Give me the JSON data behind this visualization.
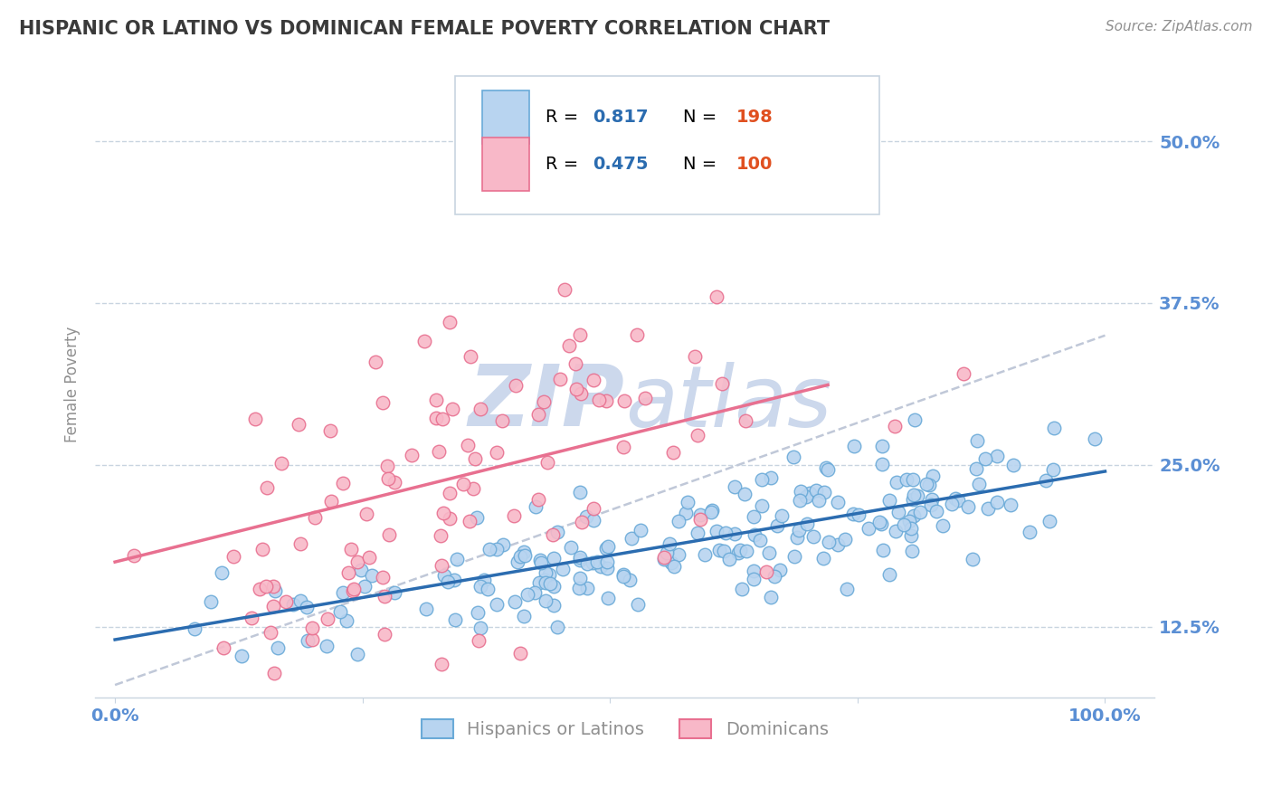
{
  "title": "HISPANIC OR LATINO VS DOMINICAN FEMALE POVERTY CORRELATION CHART",
  "source": "Source: ZipAtlas.com",
  "ylabel": "Female Poverty",
  "legend_labels": [
    "Hispanics or Latinos",
    "Dominicans"
  ],
  "r_blue": 0.817,
  "n_blue": 198,
  "r_pink": 0.475,
  "n_pink": 100,
  "blue_scatter_color": "#b8d4f0",
  "blue_edge_color": "#6aaad8",
  "pink_scatter_color": "#f8b8c8",
  "pink_edge_color": "#e87090",
  "blue_line_color": "#2b6cb0",
  "pink_line_color": "#e87090",
  "gray_dash_color": "#c0c8d8",
  "title_color": "#3a3a3a",
  "stat_color": "#2b6cb0",
  "n_color": "#e05020",
  "axis_tick_color": "#5b8fd4",
  "ylabel_color": "#909090",
  "source_color": "#909090",
  "watermark_color": "#ccd8ec",
  "grid_color": "#c8d4e0",
  "legend_border_color": "#c8d4e0",
  "background_color": "#ffffff",
  "ytick_positions": [
    0.125,
    0.25,
    0.375,
    0.5
  ],
  "ytick_labels": [
    "12.5%",
    "25.0%",
    "37.5%",
    "50.0%"
  ],
  "xlim": [
    -0.02,
    1.05
  ],
  "ylim": [
    0.07,
    0.555
  ],
  "blue_slope": 0.13,
  "blue_intercept": 0.115,
  "pink_slope": 0.19,
  "pink_intercept": 0.175,
  "gray_slope": 0.27,
  "gray_intercept": 0.08
}
